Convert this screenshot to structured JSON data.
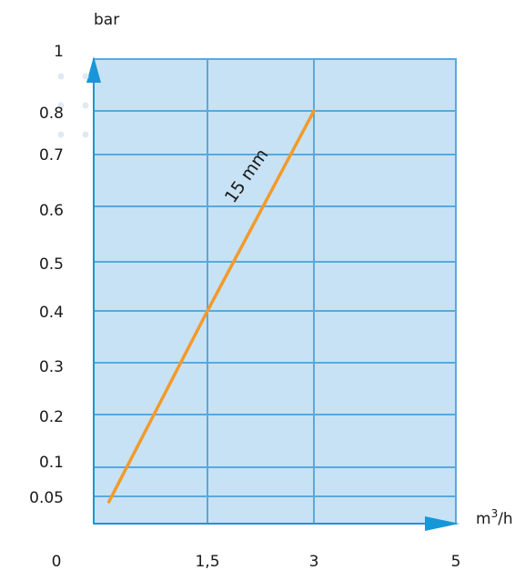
{
  "chart_data": {
    "type": "line",
    "ylabel": "bar",
    "xlabel_base": "m",
    "xlabel_sup": "3",
    "xlabel_tail": "/h",
    "x_ticks": [
      {
        "value": 0,
        "label": "0"
      },
      {
        "value": 1.5,
        "label": "1,5"
      },
      {
        "value": 3,
        "label": "3"
      },
      {
        "value": 5,
        "label": "5"
      }
    ],
    "y_ticks": [
      {
        "value": 1,
        "label": "1"
      },
      {
        "value": 0.8,
        "label": "0.8"
      },
      {
        "value": 0.7,
        "label": "0.7"
      },
      {
        "value": 0.6,
        "label": "0.6"
      },
      {
        "value": 0.5,
        "label": "0.5"
      },
      {
        "value": 0.4,
        "label": "0.4"
      },
      {
        "value": 0.3,
        "label": "0.3"
      },
      {
        "value": 0.2,
        "label": "0.2"
      },
      {
        "value": 0.1,
        "label": "0.1"
      },
      {
        "value": 0.05,
        "label": "0.05"
      }
    ],
    "series": [
      {
        "name": "15 mm",
        "color": "#f39a2b",
        "points": [
          [
            0.2,
            0.04
          ],
          [
            1.5,
            0.4
          ],
          [
            3,
            0.8
          ]
        ]
      }
    ],
    "grid": true,
    "plot_color": "#c7e2f4",
    "grid_color": "#5aa8dc",
    "axis_color": "#1797d7"
  }
}
